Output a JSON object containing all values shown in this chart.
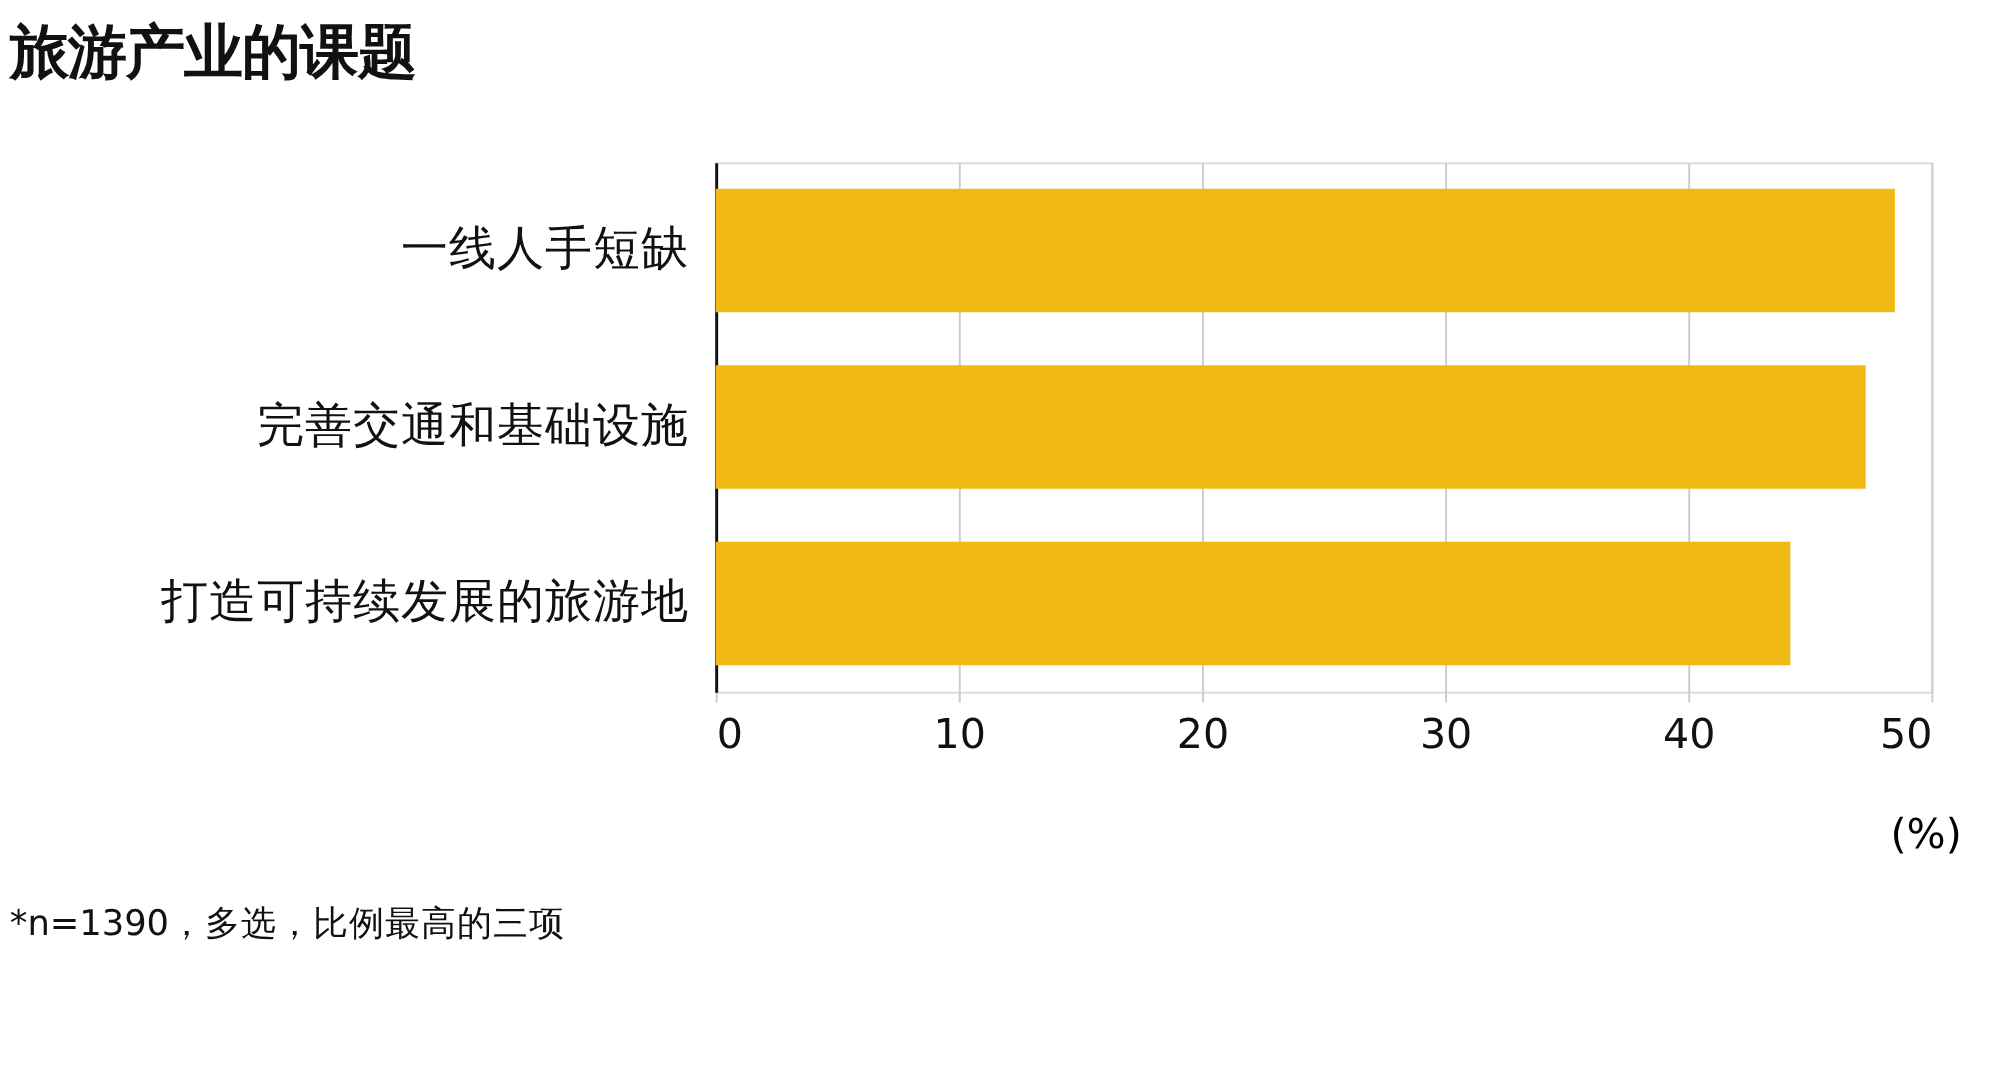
{
  "chart_data": {
    "type": "bar",
    "orientation": "horizontal",
    "title": "旅游产业的课题",
    "categories": [
      "一线人手短缺",
      "完善交通和基础设施",
      "打造可持续发展的旅游地"
    ],
    "values": [
      48.5,
      47.3,
      44.2
    ],
    "color": "#f0b914",
    "xlim": [
      0,
      50
    ],
    "xticks": [
      0,
      10,
      20,
      30,
      40,
      50
    ],
    "xlabel": "(%)",
    "grid": "x",
    "annotations": [
      "*n=1390，多选，比例最高的三项"
    ]
  }
}
